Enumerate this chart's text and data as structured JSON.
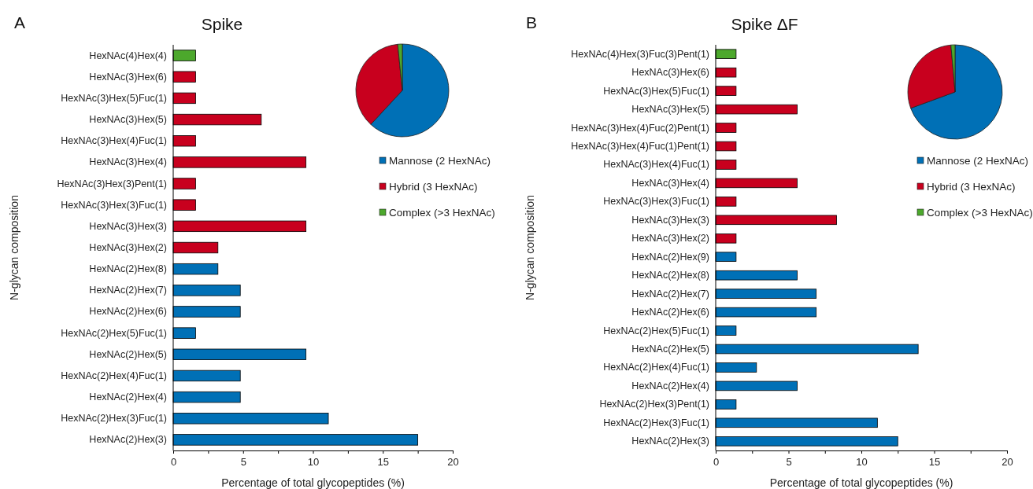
{
  "chart_data": [
    {
      "type": "bar",
      "orientation": "horizontal",
      "title": "Spike",
      "annotations": [
        "A"
      ],
      "xlabel": "Percentage of total glycopeptides (%)",
      "ylabel": "N-glycan composition",
      "categories": [
        "HexNAc(4)Hex(4)",
        "HexNAc(3)Hex(6)",
        "HexNAc(3)Hex(5)Fuc(1)",
        "HexNAc(3)Hex(5)",
        "HexNAc(3)Hex(4)Fuc(1)",
        "HexNAc(3)Hex(4)",
        "HexNAc(3)Hex(3)Pent(1)",
        "HexNAc(3)Hex(3)Fuc(1)",
        "HexNAc(3)Hex(3)",
        "HexNAc(3)Hex(2)",
        "HexNAc(2)Hex(8)",
        "HexNAc(2)Hex(7)",
        "HexNAc(2)Hex(6)",
        "HexNAc(2)Hex(5)Fuc(1)",
        "HexNAc(2)Hex(5)",
        "HexNAc(2)Hex(4)Fuc(1)",
        "HexNAc(2)Hex(4)",
        "HexNAc(2)Hex(3)Fuc(1)",
        "HexNAc(2)Hex(3)"
      ],
      "values": [
        1.6,
        1.6,
        1.6,
        6.3,
        1.6,
        9.5,
        1.6,
        1.6,
        9.5,
        3.2,
        3.2,
        4.8,
        4.8,
        1.6,
        9.5,
        4.8,
        4.8,
        11.1,
        17.5
      ],
      "colors": [
        "#4ca82c",
        "#c8001e",
        "#c8001e",
        "#c8001e",
        "#c8001e",
        "#c8001e",
        "#c8001e",
        "#c8001e",
        "#c8001e",
        "#c8001e",
        "#0070b6",
        "#0070b6",
        "#0070b6",
        "#0070b6",
        "#0070b6",
        "#0070b6",
        "#0070b6",
        "#0070b6",
        "#0070b6"
      ],
      "xlim": [
        0,
        20
      ],
      "xticks": [
        0,
        {
          "value": 2.5,
          "label": null
        },
        5,
        {
          "value": 7.5,
          "label": null
        },
        10,
        {
          "value": 12.5,
          "label": null
        },
        15,
        {
          "value": 17.5,
          "label": null
        },
        20
      ],
      "grid": false
    },
    {
      "type": "pie",
      "categories": [
        "Mannose (2 HexNAc)",
        "Hybrid (3 HexNAc)",
        "Complex (>3 HexNAc)"
      ],
      "values": [
        61.9,
        36.5,
        1.6
      ],
      "colors": [
        "#0070b6",
        "#c8001e",
        "#4ca82c"
      ],
      "legend": "bottom"
    },
    {
      "type": "bar",
      "orientation": "horizontal",
      "title": "Spike ΔF",
      "annotations": [
        "B"
      ],
      "xlabel": "Percentage of total glycopeptides (%)",
      "ylabel": "N-glycan composition",
      "categories": [
        "HexNAc(4)Hex(3)Fuc(3)Pent(1)",
        "HexNAc(3)Hex(6)",
        "HexNAc(3)Hex(5)Fuc(1)",
        "HexNAc(3)Hex(5)",
        "HexNAc(3)Hex(4)Fuc(2)Pent(1)",
        "HexNAc(3)Hex(4)Fuc(1)Pent(1)",
        "HexNAc(3)Hex(4)Fuc(1)",
        "HexNAc(3)Hex(4)",
        "HexNAc(3)Hex(3)Fuc(1)",
        "HexNAc(3)Hex(3)",
        "HexNAc(3)Hex(2)",
        "HexNAc(2)Hex(9)",
        "HexNAc(2)Hex(8)",
        "HexNAc(2)Hex(7)",
        "HexNAc(2)Hex(6)",
        "HexNAc(2)Hex(5)Fuc(1)",
        "HexNAc(2)Hex(5)",
        "HexNAc(2)Hex(4)Fuc(1)",
        "HexNAc(2)Hex(4)",
        "HexNAc(2)Hex(3)Pent(1)",
        "HexNAc(2)Hex(3)Fuc(1)",
        "HexNAc(2)Hex(3)"
      ],
      "values": [
        1.4,
        1.4,
        1.4,
        5.6,
        1.4,
        1.4,
        1.4,
        5.6,
        1.4,
        8.3,
        1.4,
        1.4,
        5.6,
        6.9,
        6.9,
        1.4,
        13.9,
        2.8,
        5.6,
        1.4,
        11.1,
        12.5
      ],
      "colors": [
        "#4ca82c",
        "#c8001e",
        "#c8001e",
        "#c8001e",
        "#c8001e",
        "#c8001e",
        "#c8001e",
        "#c8001e",
        "#c8001e",
        "#c8001e",
        "#c8001e",
        "#0070b6",
        "#0070b6",
        "#0070b6",
        "#0070b6",
        "#0070b6",
        "#0070b6",
        "#0070b6",
        "#0070b6",
        "#0070b6",
        "#0070b6",
        "#0070b6"
      ],
      "xlim": [
        0,
        20
      ],
      "xticks": [
        0,
        {
          "value": 2.5,
          "label": null
        },
        5,
        {
          "value": 7.5,
          "label": null
        },
        10,
        {
          "value": 12.5,
          "label": null
        },
        15,
        {
          "value": 17.5,
          "label": null
        },
        20
      ],
      "grid": false
    },
    {
      "type": "pie",
      "categories": [
        "Mannose (2 HexNAc)",
        "Hybrid (3 HexNAc)",
        "Complex (>3 HexNAc)"
      ],
      "values": [
        69.4,
        29.2,
        1.4
      ],
      "colors": [
        "#0070b6",
        "#c8001e",
        "#4ca82c"
      ],
      "legend": "bottom"
    }
  ]
}
